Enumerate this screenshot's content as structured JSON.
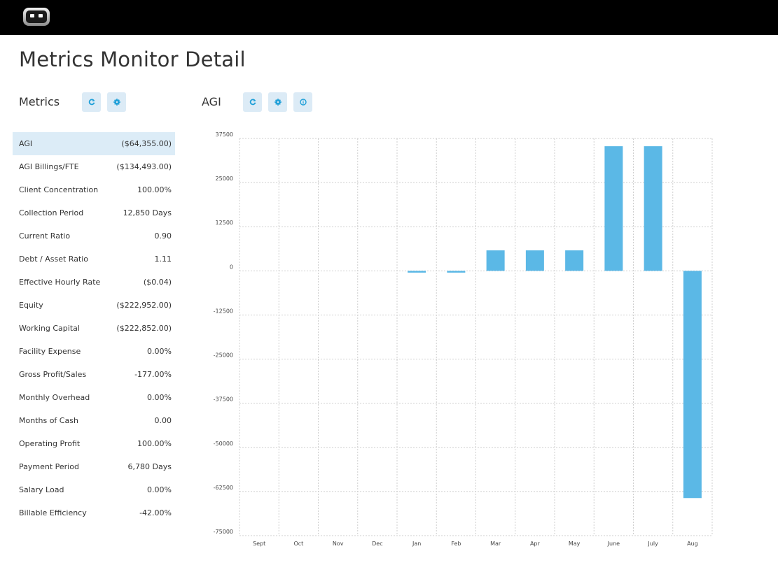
{
  "header": {
    "logo_icon": "robot-face-icon"
  },
  "page_title": "Metrics Monitor Detail",
  "metrics_panel": {
    "title": "Metrics",
    "buttons": [
      {
        "name": "refresh-button",
        "icon": "refresh-icon"
      },
      {
        "name": "settings-button",
        "icon": "gear-icon"
      }
    ],
    "selected_index": 0,
    "items": [
      {
        "label": "AGI",
        "value": "($64,355.00)"
      },
      {
        "label": "AGI Billings/FTE",
        "value": "($134,493.00)"
      },
      {
        "label": "Client Concentration",
        "value": "100.00%"
      },
      {
        "label": "Collection Period",
        "value": "12,850 Days"
      },
      {
        "label": "Current Ratio",
        "value": "0.90"
      },
      {
        "label": "Debt / Asset Ratio",
        "value": "1.11"
      },
      {
        "label": "Effective Hourly Rate",
        "value": "($0.04)"
      },
      {
        "label": "Equity",
        "value": "($222,952.00)"
      },
      {
        "label": "Working Capital",
        "value": "($222,852.00)"
      },
      {
        "label": "Facility Expense",
        "value": "0.00%"
      },
      {
        "label": "Gross Profit/Sales",
        "value": "-177.00%"
      },
      {
        "label": "Monthly Overhead",
        "value": "0.00%"
      },
      {
        "label": "Months of Cash",
        "value": "0.00"
      },
      {
        "label": "Operating Profit",
        "value": "100.00%"
      },
      {
        "label": "Payment Period",
        "value": "6,780 Days"
      },
      {
        "label": "Salary Load",
        "value": "0.00%"
      },
      {
        "label": "Billable Efficiency",
        "value": "-42.00%"
      }
    ]
  },
  "chart_panel": {
    "title": "AGI",
    "buttons": [
      {
        "name": "refresh-button",
        "icon": "refresh-icon"
      },
      {
        "name": "settings-button",
        "icon": "gear-icon"
      },
      {
        "name": "info-button",
        "icon": "info-icon"
      }
    ]
  },
  "colors": {
    "accent": "#1e9fd8",
    "bar": "#5bb8e6",
    "button_bg": "#dcebf6",
    "selected_row": "#dcecf7",
    "header_bg": "#000000"
  },
  "chart_data": {
    "type": "bar",
    "title": "",
    "xlabel": "",
    "ylabel": "",
    "categories": [
      "Sept",
      "Oct",
      "Nov",
      "Dec",
      "Jan",
      "Feb",
      "Mar",
      "Apr",
      "May",
      "June",
      "July",
      "Aug"
    ],
    "series": [
      {
        "values": [
          0,
          0,
          0,
          0,
          -500,
          -500,
          5800,
          5800,
          5800,
          35300,
          35300,
          -64355
        ]
      }
    ],
    "ylim": [
      -75000,
      37500
    ],
    "yticks": [
      37500,
      25000,
      12500,
      0,
      -12500,
      -25000,
      -37500,
      -50000,
      -62500,
      -75000
    ],
    "grid": true,
    "legend": "none"
  }
}
